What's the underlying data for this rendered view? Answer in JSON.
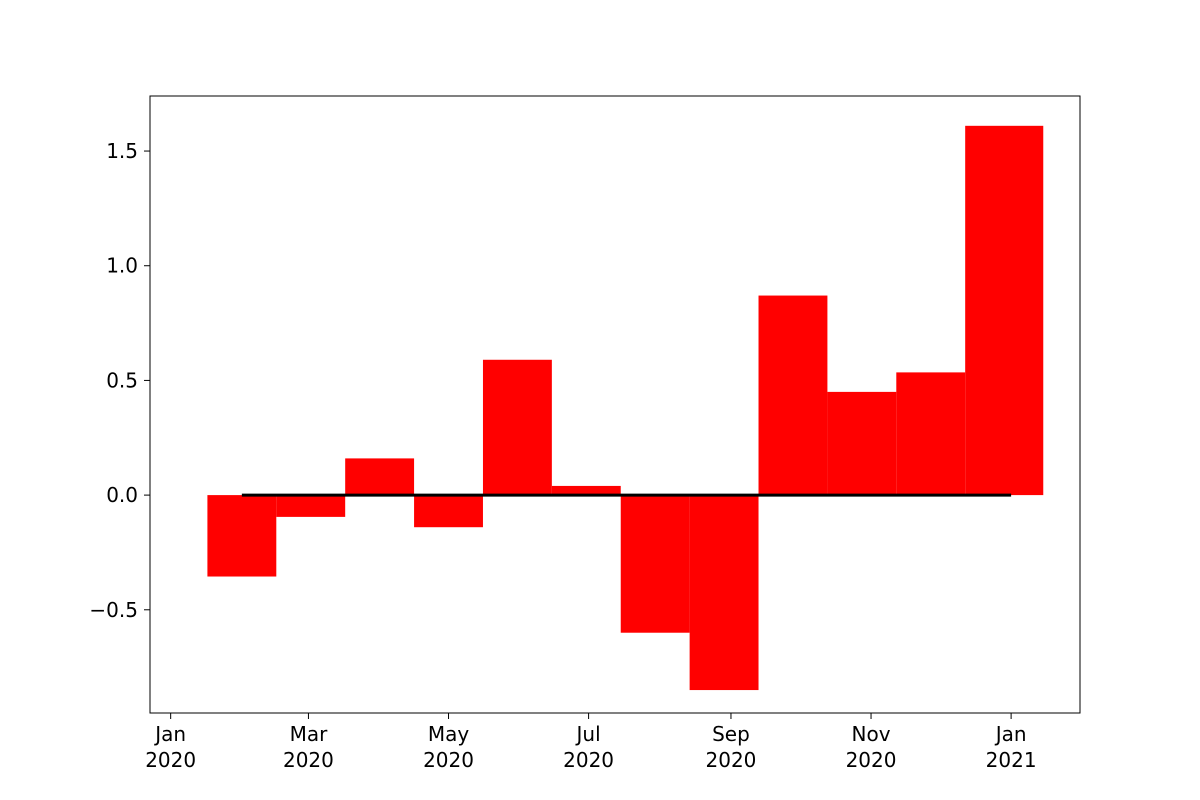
{
  "chart_data": {
    "type": "bar",
    "title": "",
    "xlabel": "",
    "ylabel": "",
    "bar_color": "#ff0000",
    "baseline_color": "#000000",
    "xlim": [
      "2019-12-23",
      "2021-01-31"
    ],
    "ylim": [
      -0.95,
      1.74
    ],
    "bars": [
      {
        "start": "2020-01-17",
        "end": "2020-02-16",
        "value": -0.355
      },
      {
        "start": "2020-02-16",
        "end": "2020-03-17",
        "value": -0.095
      },
      {
        "start": "2020-03-17",
        "end": "2020-04-16",
        "value": 0.16
      },
      {
        "start": "2020-04-16",
        "end": "2020-05-16",
        "value": -0.14
      },
      {
        "start": "2020-05-16",
        "end": "2020-06-15",
        "value": 0.59
      },
      {
        "start": "2020-06-15",
        "end": "2020-07-15",
        "value": 0.04
      },
      {
        "start": "2020-07-15",
        "end": "2020-08-14",
        "value": -0.6
      },
      {
        "start": "2020-08-14",
        "end": "2020-09-13",
        "value": -0.85
      },
      {
        "start": "2020-09-13",
        "end": "2020-10-13",
        "value": 0.87
      },
      {
        "start": "2020-10-13",
        "end": "2020-11-12",
        "value": 0.45
      },
      {
        "start": "2020-11-12",
        "end": "2020-12-12",
        "value": 0.535
      },
      {
        "start": "2020-12-12",
        "end": "2021-01-15",
        "value": 1.61
      }
    ],
    "baseline": {
      "start": "2020-02-01",
      "end": "2021-01-01",
      "value": 0.0
    },
    "x_ticks": [
      {
        "date": "2020-01-01",
        "label": [
          "Jan",
          "2020"
        ]
      },
      {
        "date": "2020-03-01",
        "label": [
          "Mar",
          "2020"
        ]
      },
      {
        "date": "2020-05-01",
        "label": [
          "May",
          "2020"
        ]
      },
      {
        "date": "2020-07-01",
        "label": [
          "Jul",
          "2020"
        ]
      },
      {
        "date": "2020-09-01",
        "label": [
          "Sep",
          "2020"
        ]
      },
      {
        "date": "2020-11-01",
        "label": [
          "Nov",
          "2020"
        ]
      },
      {
        "date": "2021-01-01",
        "label": [
          "Jan",
          "2021"
        ]
      }
    ],
    "y_ticks": [
      {
        "value": -0.5,
        "label": "−0.5"
      },
      {
        "value": 0.0,
        "label": "0.0"
      },
      {
        "value": 0.5,
        "label": "0.5"
      },
      {
        "value": 1.0,
        "label": "1.0"
      },
      {
        "value": 1.5,
        "label": "1.5"
      }
    ],
    "grid": false,
    "legend": "none"
  }
}
